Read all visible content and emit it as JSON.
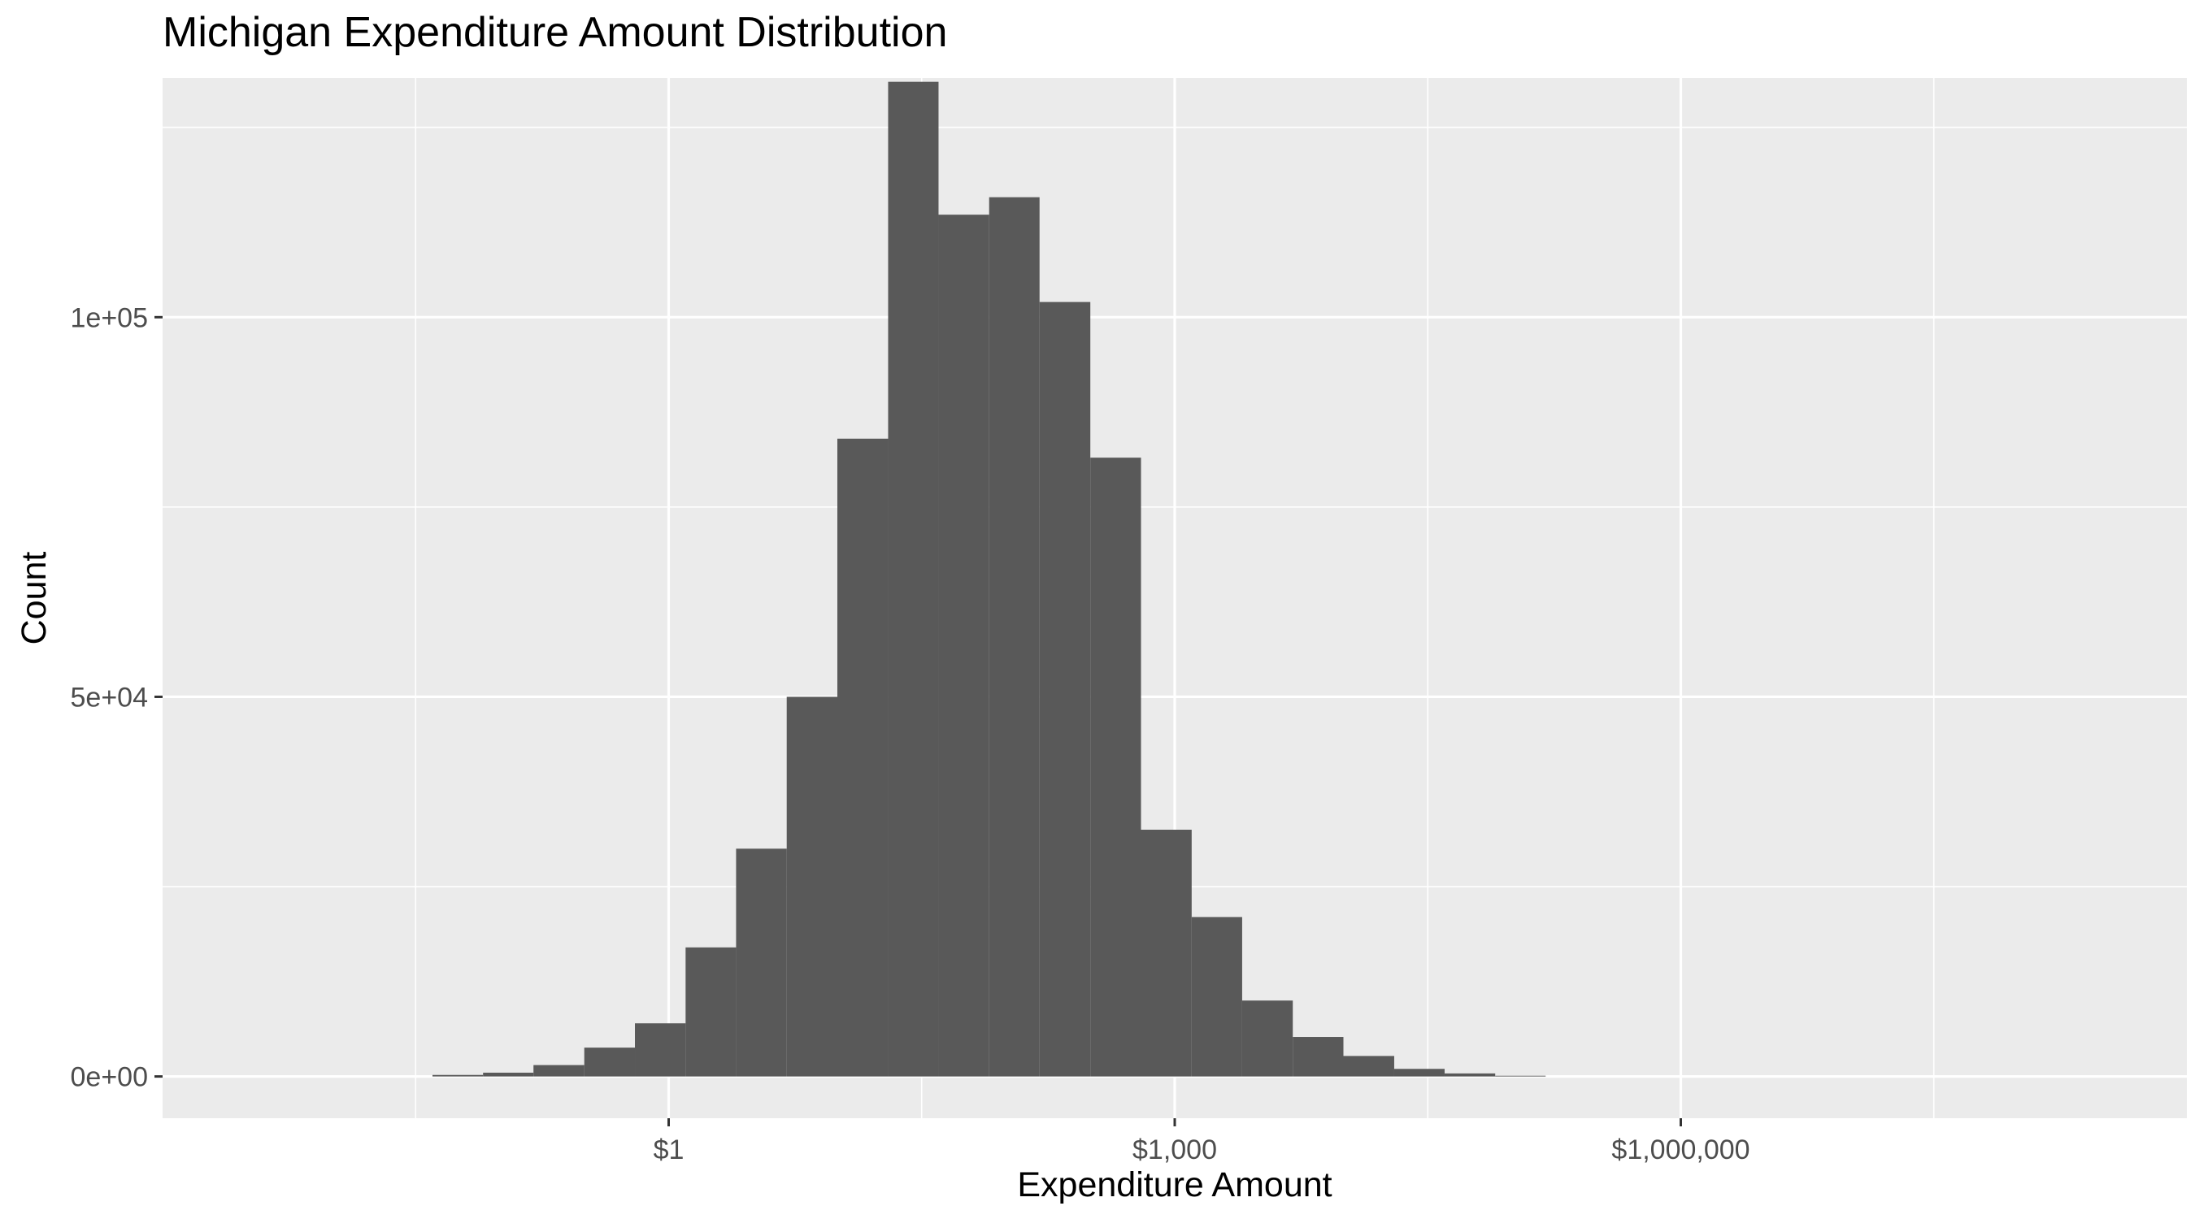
{
  "chart_data": {
    "type": "bar",
    "title": "Michigan Expenditure Amount Distribution",
    "xlabel": "Expenditure Amount",
    "ylabel": "Count",
    "x_scale": "log10",
    "xlim": [
      0.001,
      1000000000
    ],
    "ylim": [
      -5500,
      131500
    ],
    "x_ticks": [
      {
        "value": 1,
        "label": "$1"
      },
      {
        "value": 1000,
        "label": "$1,000"
      },
      {
        "value": 1000000,
        "label": "$1,000,000"
      }
    ],
    "y_ticks": [
      {
        "value": 0,
        "label": "0e+00"
      },
      {
        "value": 50000,
        "label": "5e+04"
      },
      {
        "value": 100000,
        "label": "1e+05"
      }
    ],
    "grid": true,
    "fill_color": "#595959",
    "panel_color": "#ebebeb",
    "grid_color": "#ffffff",
    "bins": [
      {
        "x_start": 0.0398,
        "x_end": 0.0794,
        "count": 200
      },
      {
        "x_start": 0.0794,
        "x_end": 0.158,
        "count": 500
      },
      {
        "x_start": 0.158,
        "x_end": 0.316,
        "count": 1500
      },
      {
        "x_start": 0.316,
        "x_end": 0.631,
        "count": 3800
      },
      {
        "x_start": 0.631,
        "x_end": 1.26,
        "count": 7000
      },
      {
        "x_start": 1.26,
        "x_end": 2.51,
        "count": 17000
      },
      {
        "x_start": 2.51,
        "x_end": 5.01,
        "count": 30000
      },
      {
        "x_start": 5.01,
        "x_end": 10.0,
        "count": 50000
      },
      {
        "x_start": 10.0,
        "x_end": 20.0,
        "count": 84000
      },
      {
        "x_start": 20.0,
        "x_end": 39.8,
        "count": 131000
      },
      {
        "x_start": 39.8,
        "x_end": 79.4,
        "count": 113500
      },
      {
        "x_start": 79.4,
        "x_end": 158,
        "count": 115800
      },
      {
        "x_start": 158,
        "x_end": 316,
        "count": 102000
      },
      {
        "x_start": 316,
        "x_end": 631,
        "count": 81500
      },
      {
        "x_start": 631,
        "x_end": 1260,
        "count": 32500
      },
      {
        "x_start": 1260,
        "x_end": 2510,
        "count": 21000
      },
      {
        "x_start": 2510,
        "x_end": 5010,
        "count": 10000
      },
      {
        "x_start": 5010,
        "x_end": 10000,
        "count": 5200
      },
      {
        "x_start": 10000,
        "x_end": 20000,
        "count": 2700
      },
      {
        "x_start": 20000,
        "x_end": 39800,
        "count": 1000
      },
      {
        "x_start": 39800,
        "x_end": 79400,
        "count": 400
      },
      {
        "x_start": 79400,
        "x_end": 158000,
        "count": 100
      }
    ]
  }
}
